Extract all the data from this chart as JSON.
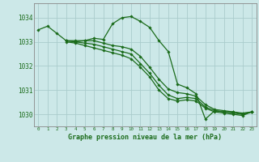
{
  "background_color": "#cce8e8",
  "grid_color": "#aacccc",
  "line_color": "#1a6b1a",
  "marker_color": "#1a6b1a",
  "title": "Graphe pression niveau de la mer (hPa)",
  "ylabel_labels": [
    "1030",
    "1031",
    "1032",
    "1033",
    "1034"
  ],
  "ylim": [
    1029.5,
    1034.6
  ],
  "xlim": [
    -0.5,
    23.5
  ],
  "xticks": [
    0,
    1,
    2,
    3,
    4,
    5,
    6,
    7,
    8,
    9,
    10,
    11,
    12,
    13,
    14,
    15,
    16,
    17,
    18,
    19,
    20,
    21,
    22,
    23
  ],
  "yticks": [
    1030,
    1031,
    1032,
    1033,
    1034
  ],
  "line1": {
    "x": [
      0,
      1,
      2,
      3,
      4,
      5,
      6,
      7,
      8,
      9,
      10,
      11,
      12,
      13,
      14,
      15,
      16,
      17,
      18,
      19,
      20,
      21,
      22,
      23
    ],
    "y": [
      1033.5,
      1033.65,
      1033.35,
      1033.05,
      1033.0,
      1033.05,
      1033.15,
      1033.1,
      1033.75,
      1034.0,
      1034.05,
      1033.85,
      1033.6,
      1033.05,
      1032.6,
      1031.25,
      1031.1,
      1030.85,
      1029.8,
      1030.15,
      1030.1,
      1030.1,
      1030.0,
      1030.1
    ]
  },
  "line2": {
    "x": [
      3,
      4,
      5,
      6,
      7,
      8,
      9,
      10,
      11,
      12,
      13,
      14,
      15,
      16,
      17,
      18,
      19,
      20,
      21,
      22,
      23
    ],
    "y": [
      1033.05,
      1033.0,
      1032.95,
      1032.9,
      1032.8,
      1032.7,
      1032.6,
      1032.5,
      1032.1,
      1031.7,
      1031.2,
      1030.8,
      1030.65,
      1030.7,
      1030.65,
      1030.3,
      1030.15,
      1030.1,
      1030.05,
      1030.0,
      1030.1
    ]
  },
  "line3": {
    "x": [
      3,
      4,
      5,
      6,
      7,
      8,
      9,
      10,
      11,
      12,
      13,
      14,
      15,
      16,
      17,
      18,
      19,
      20,
      21,
      22,
      23
    ],
    "y": [
      1033.0,
      1032.95,
      1032.85,
      1032.75,
      1032.65,
      1032.55,
      1032.45,
      1032.3,
      1031.95,
      1031.55,
      1031.0,
      1030.65,
      1030.55,
      1030.6,
      1030.55,
      1030.25,
      1030.1,
      1030.05,
      1030.0,
      1029.95,
      1030.1
    ]
  },
  "line4": {
    "x": [
      3,
      4,
      5,
      6,
      7,
      8,
      9,
      10,
      11,
      12,
      13,
      14,
      15,
      16,
      17,
      18,
      19,
      20,
      21,
      22,
      23
    ],
    "y": [
      1033.05,
      1033.05,
      1033.05,
      1033.05,
      1032.95,
      1032.85,
      1032.8,
      1032.7,
      1032.4,
      1031.95,
      1031.45,
      1031.05,
      1030.9,
      1030.85,
      1030.75,
      1030.4,
      1030.2,
      1030.15,
      1030.1,
      1030.05,
      1030.1
    ]
  }
}
